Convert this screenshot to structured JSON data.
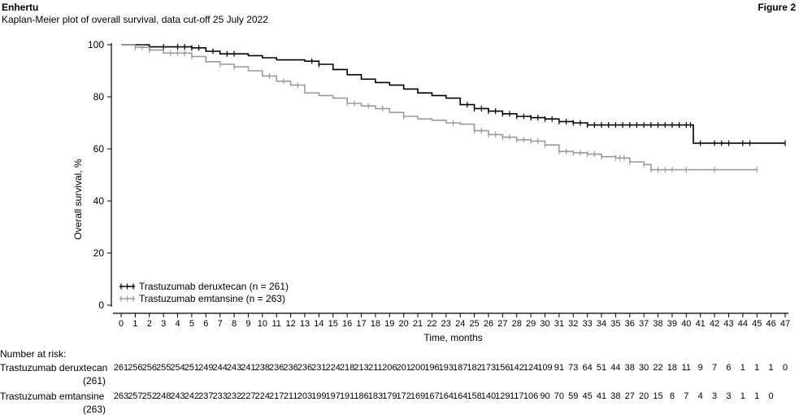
{
  "header": {
    "title": "Enhertu",
    "subtitle": "Kaplan-Meier plot of overall survival, data cut-off 25 July 2022",
    "figure_label": "Figure 2"
  },
  "chart_data": {
    "type": "line",
    "xlabel": "Time, months",
    "ylabel": "Overall survival, %",
    "xlim": [
      0,
      47
    ],
    "ylim": [
      0,
      100
    ],
    "xticks": [
      0,
      1,
      2,
      3,
      4,
      5,
      6,
      7,
      8,
      9,
      10,
      11,
      12,
      13,
      14,
      15,
      16,
      17,
      18,
      19,
      20,
      21,
      22,
      23,
      24,
      25,
      26,
      27,
      28,
      29,
      30,
      31,
      32,
      33,
      34,
      35,
      36,
      37,
      38,
      39,
      40,
      41,
      42,
      43,
      44,
      45,
      46,
      47
    ],
    "yticks": [
      0,
      20,
      40,
      60,
      80,
      100
    ],
    "grid": false,
    "legend_position": "bottom-left",
    "series": [
      {
        "name": "Trastuzumab deruxtecan (n = 261)",
        "color": "#000000",
        "step": true,
        "points": [
          [
            0,
            100
          ],
          [
            2,
            99.2
          ],
          [
            5,
            98.8
          ],
          [
            6,
            97.5
          ],
          [
            7,
            96.5
          ],
          [
            9,
            95.8
          ],
          [
            10,
            95.0
          ],
          [
            11,
            94.2
          ],
          [
            13,
            93.7
          ],
          [
            14,
            92.5
          ],
          [
            15,
            90.5
          ],
          [
            16,
            88.5
          ],
          [
            17,
            86.8
          ],
          [
            18,
            85.5
          ],
          [
            19,
            84.5
          ],
          [
            20,
            83.0
          ],
          [
            21,
            81.5
          ],
          [
            22,
            80.5
          ],
          [
            23,
            79.5
          ],
          [
            24,
            77.0
          ],
          [
            25,
            75.5
          ],
          [
            26,
            74.5
          ],
          [
            27,
            73.5
          ],
          [
            28,
            72.5
          ],
          [
            29,
            72.0
          ],
          [
            30,
            71.5
          ],
          [
            31,
            70.5
          ],
          [
            32,
            70.0
          ],
          [
            33,
            69.2
          ],
          [
            40.5,
            69.2
          ],
          [
            40.5,
            62.2
          ],
          [
            47,
            62.2
          ]
        ],
        "censor_x": [
          3,
          4,
          4.5,
          5,
          5.5,
          6.5,
          7.5,
          8,
          13.5,
          14,
          24.5,
          25,
          25.5,
          26,
          26.5,
          27,
          27.5,
          28,
          28.5,
          29,
          29.5,
          30,
          30.5,
          31,
          31.5,
          32,
          32.5,
          33,
          33.5,
          34,
          34.5,
          35,
          35.5,
          36,
          36.5,
          37,
          37.5,
          38,
          38.5,
          39,
          39.5,
          40,
          40.3,
          41,
          42,
          42.5,
          43,
          44,
          44.5,
          47
        ]
      },
      {
        "name": "Trastuzumab emtansine (n = 263)",
        "color": "#9b9b9b",
        "step": true,
        "points": [
          [
            0,
            100
          ],
          [
            1,
            99.0
          ],
          [
            2,
            98.0
          ],
          [
            3,
            96.8
          ],
          [
            5,
            95.5
          ],
          [
            6,
            93.5
          ],
          [
            7,
            92.5
          ],
          [
            8,
            91.5
          ],
          [
            9,
            90.0
          ],
          [
            10,
            88.0
          ],
          [
            11,
            86.0
          ],
          [
            12,
            84.5
          ],
          [
            13,
            81.5
          ],
          [
            14,
            80.5
          ],
          [
            15,
            79.5
          ],
          [
            16,
            77.5
          ],
          [
            17,
            76.5
          ],
          [
            18,
            75.5
          ],
          [
            19,
            74.0
          ],
          [
            20,
            72.5
          ],
          [
            21,
            71.5
          ],
          [
            22,
            71.0
          ],
          [
            23,
            70.0
          ],
          [
            24,
            69.5
          ],
          [
            25,
            67.0
          ],
          [
            26,
            65.5
          ],
          [
            27,
            64.5
          ],
          [
            28,
            63.5
          ],
          [
            29,
            63.0
          ],
          [
            30,
            61.5
          ],
          [
            31,
            59.0
          ],
          [
            32,
            58.5
          ],
          [
            33,
            58.0
          ],
          [
            34,
            57.0
          ],
          [
            35,
            56.5
          ],
          [
            36,
            55.0
          ],
          [
            37,
            54.0
          ],
          [
            37.5,
            52.0
          ],
          [
            45,
            52.0
          ]
        ],
        "censor_x": [
          1,
          1.5,
          2,
          3.5,
          4,
          4.5,
          5,
          7,
          8,
          10.5,
          11.5,
          12.5,
          16,
          16.5,
          17.5,
          18.5,
          20,
          23.5,
          25,
          25.5,
          26,
          26.5,
          27,
          27.5,
          28,
          28.5,
          29,
          29.5,
          30,
          31,
          31.5,
          32,
          32.5,
          33,
          33.5,
          34,
          35,
          35.3,
          35.6,
          36,
          37,
          37.5,
          38,
          38.5,
          39,
          40,
          42,
          45
        ]
      }
    ]
  },
  "risk_table": {
    "title": "Number at risk:",
    "rows": [
      {
        "name": "Trastuzumab deruxtecan",
        "n": "(261)",
        "values": [
          "261",
          "256",
          "256",
          "255",
          "254",
          "251",
          "249",
          "244",
          "243",
          "241",
          "238",
          "236",
          "236",
          "236",
          "231",
          "224",
          "218",
          "213",
          "211",
          "206",
          "201",
          "200",
          "196",
          "193",
          "187",
          "182",
          "173",
          "156",
          "142",
          "124",
          "109",
          "91",
          "73",
          "64",
          "51",
          "44",
          "38",
          "30",
          "22",
          "18",
          "11",
          "9",
          "7",
          "6",
          "1",
          "1",
          "1",
          "0"
        ]
      },
      {
        "name": "Trastuzumab emtansine",
        "n": "(263)",
        "values": [
          "263",
          "257",
          "252",
          "248",
          "243",
          "242",
          "237",
          "233",
          "232",
          "227",
          "224",
          "217",
          "211",
          "203",
          "199",
          "197",
          "191",
          "186",
          "183",
          "179",
          "172",
          "169",
          "167",
          "164",
          "164",
          "158",
          "140",
          "129",
          "117",
          "106",
          "90",
          "70",
          "59",
          "45",
          "41",
          "38",
          "27",
          "20",
          "15",
          "8",
          "7",
          "4",
          "3",
          "3",
          "1",
          "1",
          "0",
          ""
        ]
      }
    ]
  }
}
